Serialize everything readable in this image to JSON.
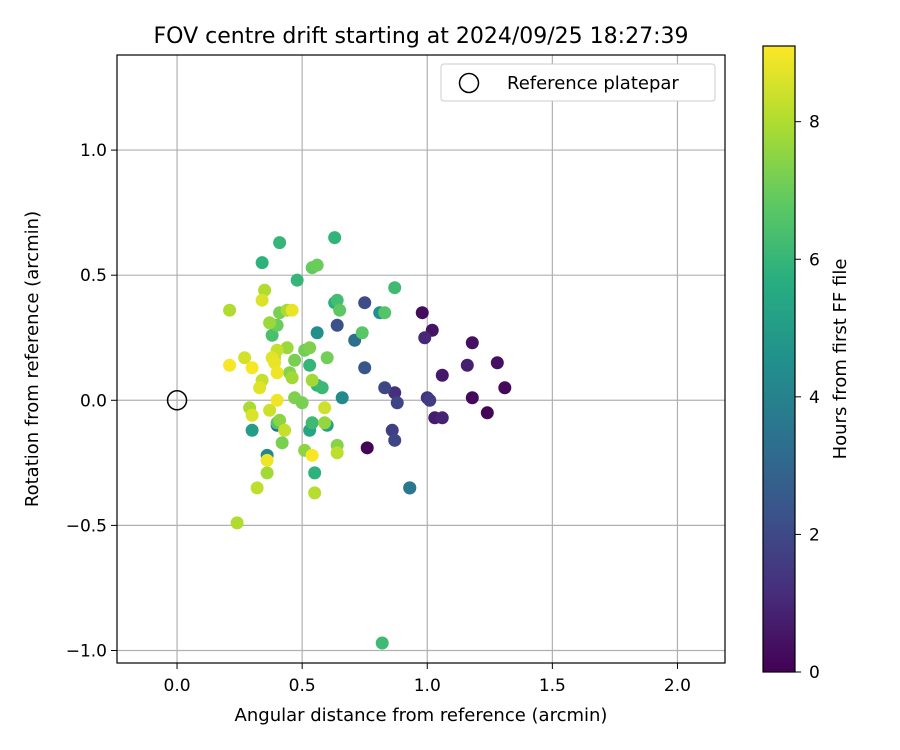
{
  "chart_data": {
    "type": "scatter",
    "title": "FOV centre drift starting at 2024/09/25 18:27:39",
    "xlabel": "Angular distance from reference (arcmin)",
    "ylabel": "Rotation from reference (arcmin)",
    "xlim": [
      -0.24,
      2.19
    ],
    "ylim": [
      -1.05,
      1.38
    ],
    "xticks": [
      0.0,
      0.5,
      1.0,
      1.5,
      2.0
    ],
    "xtick_labels": [
      "0.0",
      "0.5",
      "1.0",
      "1.5",
      "2.0"
    ],
    "yticks": [
      -1.0,
      -0.5,
      0.0,
      0.5,
      1.0
    ],
    "ytick_labels": [
      "−1.0",
      "−0.5",
      "0.0",
      "0.5",
      "1.0"
    ],
    "grid": true,
    "legend": {
      "label": "Reference platepar",
      "placement": "top-right"
    },
    "reference_point": {
      "x": 0.0,
      "y": 0.0
    },
    "colorbar": {
      "label": "Hours from first FF file",
      "range": [
        0,
        9.1
      ],
      "ticks": [
        0,
        2,
        4,
        6,
        8
      ],
      "tick_labels": [
        "0",
        "2",
        "4",
        "6",
        "8"
      ],
      "colormap": "viridis"
    },
    "points": [
      {
        "x": 0.76,
        "y": -0.19,
        "h": 0.1
      },
      {
        "x": 0.98,
        "y": 0.35,
        "h": 0.3
      },
      {
        "x": 1.02,
        "y": 0.28,
        "h": 0.5
      },
      {
        "x": 1.18,
        "y": 0.23,
        "h": 0.4
      },
      {
        "x": 1.28,
        "y": 0.15,
        "h": 0.4
      },
      {
        "x": 1.31,
        "y": 0.05,
        "h": 0.2
      },
      {
        "x": 1.24,
        "y": -0.05,
        "h": 0.1
      },
      {
        "x": 1.18,
        "y": 0.01,
        "h": 0.2
      },
      {
        "x": 1.06,
        "y": 0.1,
        "h": 0.6
      },
      {
        "x": 1.16,
        "y": 0.14,
        "h": 0.8
      },
      {
        "x": 0.99,
        "y": 0.25,
        "h": 1.0
      },
      {
        "x": 1.03,
        "y": -0.07,
        "h": 0.7
      },
      {
        "x": 1.06,
        "y": -0.07,
        "h": 0.9
      },
      {
        "x": 1.0,
        "y": 0.01,
        "h": 1.3
      },
      {
        "x": 1.01,
        "y": 0.0,
        "h": 1.6
      },
      {
        "x": 0.87,
        "y": 0.03,
        "h": 1.2
      },
      {
        "x": 0.88,
        "y": -0.01,
        "h": 1.9
      },
      {
        "x": 0.83,
        "y": 0.05,
        "h": 1.9
      },
      {
        "x": 0.86,
        "y": -0.12,
        "h": 1.7
      },
      {
        "x": 0.87,
        "y": -0.16,
        "h": 1.9
      },
      {
        "x": 0.75,
        "y": 0.39,
        "h": 2.1
      },
      {
        "x": 0.75,
        "y": 0.13,
        "h": 2.4
      },
      {
        "x": 0.64,
        "y": 0.3,
        "h": 2.2
      },
      {
        "x": 0.71,
        "y": 0.24,
        "h": 3.3
      },
      {
        "x": 0.93,
        "y": -0.35,
        "h": 3.3
      },
      {
        "x": 0.93,
        "y": -0.35,
        "h": 3.6
      },
      {
        "x": 0.4,
        "y": -0.1,
        "h": 3.3
      },
      {
        "x": 0.36,
        "y": -0.22,
        "h": 4.2
      },
      {
        "x": 0.66,
        "y": 0.01,
        "h": 4.3
      },
      {
        "x": 0.56,
        "y": 0.27,
        "h": 4.5
      },
      {
        "x": 0.81,
        "y": 0.35,
        "h": 4.6
      },
      {
        "x": 0.3,
        "y": -0.12,
        "h": 5.0
      },
      {
        "x": 0.53,
        "y": -0.12,
        "h": 5.3
      },
      {
        "x": 0.6,
        "y": -0.1,
        "h": 5.2
      },
      {
        "x": 0.34,
        "y": 0.55,
        "h": 5.8
      },
      {
        "x": 0.63,
        "y": 0.65,
        "h": 5.9
      },
      {
        "x": 0.41,
        "y": 0.63,
        "h": 6.0
      },
      {
        "x": 0.48,
        "y": 0.48,
        "h": 6.0
      },
      {
        "x": 0.87,
        "y": 0.45,
        "h": 6.2
      },
      {
        "x": 0.82,
        "y": -0.97,
        "h": 6.2
      },
      {
        "x": 0.55,
        "y": -0.29,
        "h": 5.8
      },
      {
        "x": 0.63,
        "y": 0.39,
        "h": 5.7
      },
      {
        "x": 0.64,
        "y": 0.4,
        "h": 6.3
      },
      {
        "x": 0.56,
        "y": 0.06,
        "h": 5.9
      },
      {
        "x": 0.58,
        "y": 0.05,
        "h": 6.1
      },
      {
        "x": 0.54,
        "y": -0.09,
        "h": 6.2
      },
      {
        "x": 0.53,
        "y": 0.14,
        "h": 6.0
      },
      {
        "x": 0.38,
        "y": 0.26,
        "h": 6.4
      },
      {
        "x": 0.4,
        "y": -0.09,
        "h": 6.6
      },
      {
        "x": 0.83,
        "y": 0.35,
        "h": 6.6
      },
      {
        "x": 0.65,
        "y": 0.36,
        "h": 6.8
      },
      {
        "x": 0.74,
        "y": 0.27,
        "h": 6.7
      },
      {
        "x": 0.54,
        "y": 0.53,
        "h": 6.9
      },
      {
        "x": 0.56,
        "y": 0.54,
        "h": 7.0
      },
      {
        "x": 0.4,
        "y": 0.3,
        "h": 7.0
      },
      {
        "x": 0.41,
        "y": 0.35,
        "h": 7.2
      },
      {
        "x": 0.6,
        "y": 0.17,
        "h": 7.1
      },
      {
        "x": 0.51,
        "y": 0.2,
        "h": 7.1
      },
      {
        "x": 0.53,
        "y": 0.21,
        "h": 7.3
      },
      {
        "x": 0.47,
        "y": 0.16,
        "h": 7.2
      },
      {
        "x": 0.45,
        "y": 0.11,
        "h": 7.4
      },
      {
        "x": 0.47,
        "y": 0.01,
        "h": 7.3
      },
      {
        "x": 0.5,
        "y": -0.01,
        "h": 7.2
      },
      {
        "x": 0.41,
        "y": -0.08,
        "h": 7.5
      },
      {
        "x": 0.42,
        "y": -0.17,
        "h": 7.2
      },
      {
        "x": 0.64,
        "y": -0.18,
        "h": 7.4
      },
      {
        "x": 0.59,
        "y": -0.09,
        "h": 7.6
      },
      {
        "x": 0.51,
        "y": -0.2,
        "h": 7.5
      },
      {
        "x": 0.54,
        "y": 0.08,
        "h": 7.8
      },
      {
        "x": 0.46,
        "y": 0.09,
        "h": 7.8
      },
      {
        "x": 0.44,
        "y": 0.21,
        "h": 7.7
      },
      {
        "x": 0.44,
        "y": 0.36,
        "h": 7.9
      },
      {
        "x": 0.37,
        "y": 0.31,
        "h": 7.7
      },
      {
        "x": 0.35,
        "y": 0.44,
        "h": 8.0
      },
      {
        "x": 0.21,
        "y": 0.36,
        "h": 8.0
      },
      {
        "x": 0.29,
        "y": -0.03,
        "h": 7.9
      },
      {
        "x": 0.36,
        "y": -0.29,
        "h": 7.8
      },
      {
        "x": 0.24,
        "y": -0.49,
        "h": 8.0
      },
      {
        "x": 0.32,
        "y": -0.35,
        "h": 8.2
      },
      {
        "x": 0.55,
        "y": -0.37,
        "h": 8.1
      },
      {
        "x": 0.64,
        "y": -0.21,
        "h": 8.2
      },
      {
        "x": 0.59,
        "y": -0.03,
        "h": 8.4
      },
      {
        "x": 0.43,
        "y": -0.12,
        "h": 8.3
      },
      {
        "x": 0.37,
        "y": -0.04,
        "h": 8.4
      },
      {
        "x": 0.3,
        "y": -0.06,
        "h": 8.6
      },
      {
        "x": 0.34,
        "y": 0.08,
        "h": 8.3
      },
      {
        "x": 0.39,
        "y": 0.17,
        "h": 8.2
      },
      {
        "x": 0.4,
        "y": 0.2,
        "h": 8.3
      },
      {
        "x": 0.27,
        "y": 0.17,
        "h": 8.5
      },
      {
        "x": 0.34,
        "y": 0.4,
        "h": 8.6
      },
      {
        "x": 0.46,
        "y": 0.36,
        "h": 8.8
      },
      {
        "x": 0.38,
        "y": 0.17,
        "h": 8.7
      },
      {
        "x": 0.39,
        "y": 0.15,
        "h": 8.8
      },
      {
        "x": 0.4,
        "y": 0.11,
        "h": 8.9
      },
      {
        "x": 0.33,
        "y": 0.05,
        "h": 8.7
      },
      {
        "x": 0.3,
        "y": 0.13,
        "h": 9.0
      },
      {
        "x": 0.21,
        "y": 0.14,
        "h": 9.0
      },
      {
        "x": 0.4,
        "y": 0.0,
        "h": 8.9
      },
      {
        "x": 0.36,
        "y": -0.24,
        "h": 8.9
      },
      {
        "x": 0.54,
        "y": -0.22,
        "h": 9.0
      }
    ]
  }
}
